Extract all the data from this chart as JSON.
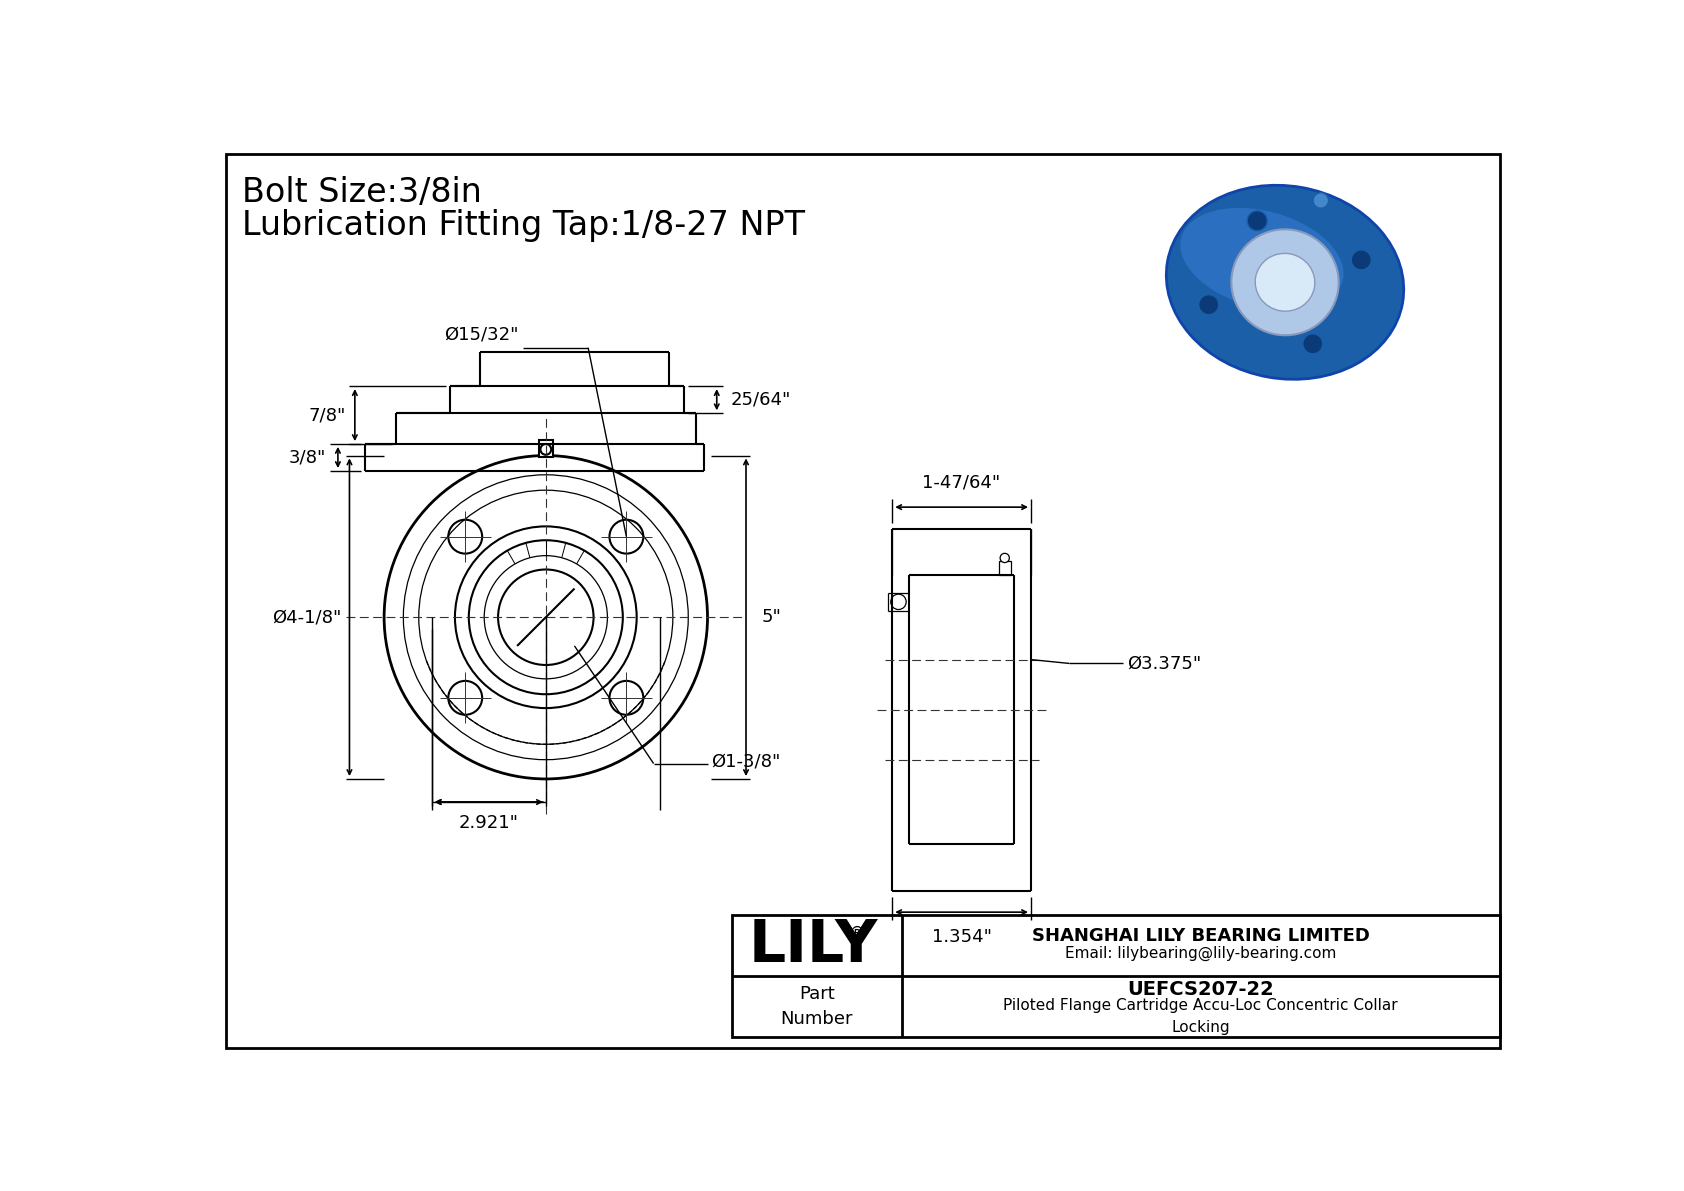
{
  "bg_color": "#ffffff",
  "line_color": "#000000",
  "title_line1": "Bolt Size:3/8in",
  "title_line2": "Lubrication Fitting Tap:1/8-27 NPT",
  "title_fontsize": 24,
  "dim_fontsize": 13,
  "label_company": "SHANGHAI LILY BEARING LIMITED",
  "label_email": "Email: lilybearing@lily-bearing.com",
  "label_lily": "LILY",
  "label_part": "Part\nNumber",
  "label_partnum": "UEFCS207-22",
  "label_desc": "Piloted Flange Cartridge Accu-Loc Concentric Collar\nLocking",
  "dims": {
    "bolt_hole_dia": "Ø15/32\"",
    "flange_dia": "Ø4-1/8\"",
    "bore_dia": "Ø1-3/8\"",
    "height": "5\"",
    "bolt_circle": "2.921\"",
    "side_width": "1-47/64\"",
    "side_depth": "1.354\"",
    "side_bore": "Ø3.375\"",
    "bottom_total": "7/8\"",
    "bottom_pilot": "25/64\"",
    "bottom_base": "3/8\""
  }
}
